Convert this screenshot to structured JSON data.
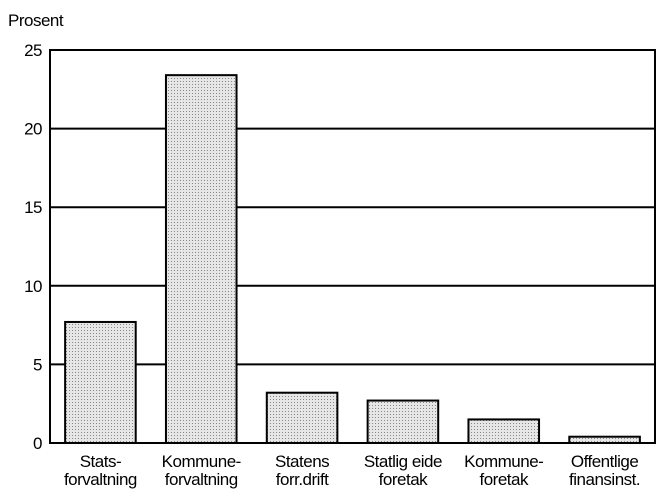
{
  "chart_data": {
    "type": "bar",
    "y_axis_label": "Prosent",
    "categories": [
      [
        "Stats-",
        "forvaltning"
      ],
      [
        "Kommune-",
        "forvaltning"
      ],
      [
        "Statens",
        "forr.drift"
      ],
      [
        "Statlig eide",
        "foretak"
      ],
      [
        "Kommune-",
        "foretak"
      ],
      [
        "Offentlige",
        "finansinst."
      ]
    ],
    "values": [
      7.7,
      23.4,
      3.2,
      2.7,
      1.5,
      0.4
    ],
    "color": "#d9d9d9",
    "ylim": [
      0,
      25
    ],
    "yticks": [
      0,
      5,
      10,
      15,
      20,
      25
    ],
    "grid": true
  }
}
